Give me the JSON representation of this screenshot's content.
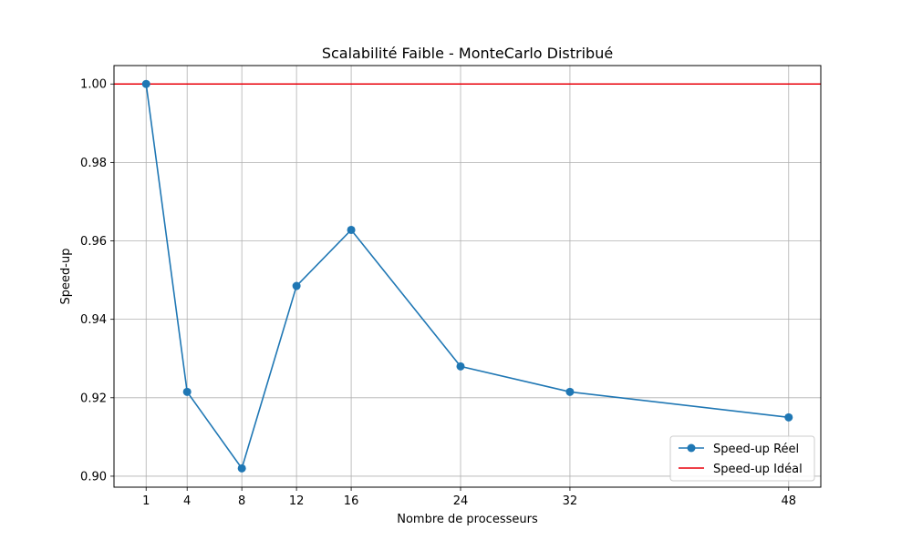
{
  "chart_data": {
    "type": "line",
    "title": "Scalabilité Faible - MonteCarlo Distribué",
    "xlabel": "Nombre de processeurs",
    "ylabel": "Speed-up",
    "x": [
      1,
      4,
      8,
      12,
      16,
      24,
      32,
      48
    ],
    "x_tick_labels": [
      "1",
      "4",
      "8",
      "12",
      "16",
      "24",
      "32",
      "48"
    ],
    "xlim": [
      -1.35,
      50.35
    ],
    "ylim": [
      0.8972,
      1.0047
    ],
    "y_ticks": [
      0.9,
      0.92,
      0.94,
      0.96,
      0.98,
      1.0
    ],
    "y_tick_labels": [
      "0.90",
      "0.92",
      "0.94",
      "0.96",
      "0.98",
      "1.00"
    ],
    "grid": true,
    "legend_position": "lower-right",
    "series": [
      {
        "name": "Speed-up Réel",
        "color": "#1f77b4",
        "marker": "circle",
        "values": [
          1.0,
          0.9215,
          0.902,
          0.9485,
          0.9628,
          0.928,
          0.9215,
          0.915
        ]
      }
    ],
    "reference_lines": [
      {
        "name": "Speed-up Idéal",
        "color": "#e8000b",
        "orientation": "horizontal",
        "y": 1.0
      }
    ]
  }
}
